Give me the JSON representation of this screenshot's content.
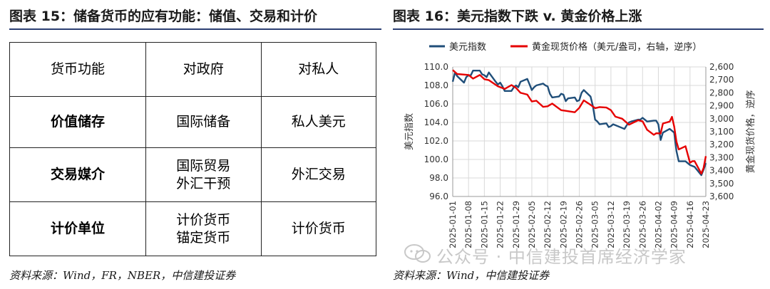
{
  "left": {
    "title": "图表 15：储备货币的应有功能：储值、交易和计价",
    "table": {
      "headers": [
        "货币功能",
        "对政府",
        "对私人"
      ],
      "rows": [
        {
          "label": "价值储存",
          "gov": [
            "国际储备"
          ],
          "private": [
            "私人美元"
          ]
        },
        {
          "label": "交易媒介",
          "gov": [
            "国际贸易",
            "外汇干预"
          ],
          "private": [
            "外汇交易"
          ]
        },
        {
          "label": "计价单位",
          "gov": [
            "计价货币",
            "锚定货币"
          ],
          "private": [
            "计价货币"
          ]
        }
      ]
    },
    "source": "资料来源：Wind，FR，NBER，中信建投证券"
  },
  "right": {
    "title": "图表 16：美元指数下跌  v.  黄金价格上涨",
    "source": "资料来源：Wind，中信建投证券",
    "watermark": "公众号 · 中信建投首席经济学家"
  },
  "chart_data": {
    "type": "line",
    "title": "",
    "ylabel": "美元指数",
    "y2label": "黄金现货价格，逆序",
    "ylim": [
      96.0,
      110.0
    ],
    "yticks": [
      "96.0",
      "98.0",
      "100.0",
      "102.0",
      "104.0",
      "106.0",
      "108.0",
      "110.0"
    ],
    "y2lim": [
      2600,
      3600
    ],
    "y2_reversed": true,
    "y2ticks": [
      "2,600",
      "2,700",
      "2,800",
      "2,900",
      "3,000",
      "3,100",
      "3,200",
      "3,300",
      "3,400",
      "3,500",
      "3,600"
    ],
    "xlim": [
      "2025-01-01",
      "2025-04-23"
    ],
    "xticks": [
      "2025-01-01",
      "2025-01-08",
      "2025-01-15",
      "2025-01-22",
      "2025-01-29",
      "2025-02-05",
      "2025-02-12",
      "2025-02-19",
      "2025-02-26",
      "2025-03-05",
      "2025-03-12",
      "2025-03-19",
      "2025-03-26",
      "2025-04-02",
      "2025-04-09",
      "2025-04-16",
      "2025-04-23"
    ],
    "legend_position": "top",
    "colors": {
      "usd": "#1f4e79",
      "gold": "#e60000"
    },
    "series": [
      {
        "name": "美元指数",
        "axis": "left",
        "x": [
          "2025-01-01",
          "2025-01-02",
          "2025-01-03",
          "2025-01-06",
          "2025-01-07",
          "2025-01-08",
          "2025-01-09",
          "2025-01-10",
          "2025-01-13",
          "2025-01-14",
          "2025-01-15",
          "2025-01-16",
          "2025-01-17",
          "2025-01-20",
          "2025-01-21",
          "2025-01-22",
          "2025-01-23",
          "2025-01-24",
          "2025-01-27",
          "2025-01-28",
          "2025-01-29",
          "2025-01-30",
          "2025-01-31",
          "2025-02-03",
          "2025-02-04",
          "2025-02-05",
          "2025-02-06",
          "2025-02-07",
          "2025-02-10",
          "2025-02-11",
          "2025-02-12",
          "2025-02-13",
          "2025-02-14",
          "2025-02-17",
          "2025-02-18",
          "2025-02-19",
          "2025-02-20",
          "2025-02-21",
          "2025-02-24",
          "2025-02-25",
          "2025-02-26",
          "2025-02-27",
          "2025-02-28",
          "2025-03-03",
          "2025-03-04",
          "2025-03-05",
          "2025-03-06",
          "2025-03-07",
          "2025-03-10",
          "2025-03-11",
          "2025-03-12",
          "2025-03-13",
          "2025-03-14",
          "2025-03-17",
          "2025-03-18",
          "2025-03-19",
          "2025-03-20",
          "2025-03-21",
          "2025-03-24",
          "2025-03-25",
          "2025-03-26",
          "2025-03-27",
          "2025-03-28",
          "2025-03-31",
          "2025-04-01",
          "2025-04-02",
          "2025-04-03",
          "2025-04-04",
          "2025-04-07",
          "2025-04-08",
          "2025-04-09",
          "2025-04-10",
          "2025-04-11",
          "2025-04-14",
          "2025-04-15",
          "2025-04-16",
          "2025-04-17",
          "2025-04-18",
          "2025-04-21",
          "2025-04-22",
          "2025-04-23"
        ],
        "values": [
          108.4,
          109.4,
          109.0,
          108.3,
          108.9,
          109.1,
          109.1,
          109.6,
          109.6,
          109.2,
          109.1,
          108.9,
          109.4,
          108.4,
          108.1,
          108.3,
          107.9,
          107.4,
          107.4,
          107.8,
          108.0,
          107.8,
          108.4,
          108.7,
          108.1,
          107.5,
          107.8,
          108.0,
          108.2,
          108.0,
          107.9,
          107.1,
          106.7,
          106.8,
          107.1,
          107.0,
          106.3,
          106.6,
          106.7,
          106.3,
          106.4,
          107.2,
          107.5,
          106.8,
          105.8,
          104.3,
          104.1,
          103.8,
          103.9,
          103.5,
          103.6,
          103.8,
          103.7,
          103.4,
          103.3,
          103.7,
          104.0,
          104.1,
          104.3,
          104.3,
          104.5,
          104.3,
          104.1,
          104.2,
          104.2,
          103.8,
          102.1,
          102.9,
          103.3,
          103.1,
          102.9,
          100.9,
          99.8,
          99.8,
          99.6,
          99.4,
          99.3,
          99.2,
          98.3,
          98.9,
          99.6
        ]
      },
      {
        "name": "黄金现货价格（美元/盎司，右轴，逆序）",
        "axis": "right",
        "x": [
          "2025-01-01",
          "2025-01-03",
          "2025-01-08",
          "2025-01-10",
          "2025-01-13",
          "2025-01-15",
          "2025-01-17",
          "2025-01-21",
          "2025-01-24",
          "2025-01-27",
          "2025-01-29",
          "2025-01-31",
          "2025-02-03",
          "2025-02-05",
          "2025-02-07",
          "2025-02-10",
          "2025-02-12",
          "2025-02-14",
          "2025-02-18",
          "2025-02-20",
          "2025-02-24",
          "2025-02-26",
          "2025-02-28",
          "2025-03-03",
          "2025-03-05",
          "2025-03-07",
          "2025-03-10",
          "2025-03-12",
          "2025-03-14",
          "2025-03-17",
          "2025-03-20",
          "2025-03-24",
          "2025-03-26",
          "2025-03-28",
          "2025-03-31",
          "2025-04-01",
          "2025-04-03",
          "2025-04-04",
          "2025-04-07",
          "2025-04-08",
          "2025-04-09",
          "2025-04-10",
          "2025-04-11",
          "2025-04-14",
          "2025-04-16",
          "2025-04-17",
          "2025-04-18",
          "2025-04-21",
          "2025-04-22",
          "2025-04-23"
        ],
        "values": [
          2624,
          2655,
          2662,
          2690,
          2662,
          2695,
          2702,
          2750,
          2770,
          2740,
          2762,
          2800,
          2814,
          2867,
          2861,
          2908,
          2904,
          2883,
          2934,
          2939,
          2950,
          2916,
          2858,
          2893,
          2918,
          2910,
          2914,
          2934,
          2984,
          3000,
          3046,
          3012,
          3020,
          3085,
          3124,
          3112,
          3114,
          3037,
          3022,
          2985,
          3060,
          3177,
          3237,
          3212,
          3340,
          3328,
          3327,
          3424,
          3381,
          3289
        ]
      }
    ]
  }
}
